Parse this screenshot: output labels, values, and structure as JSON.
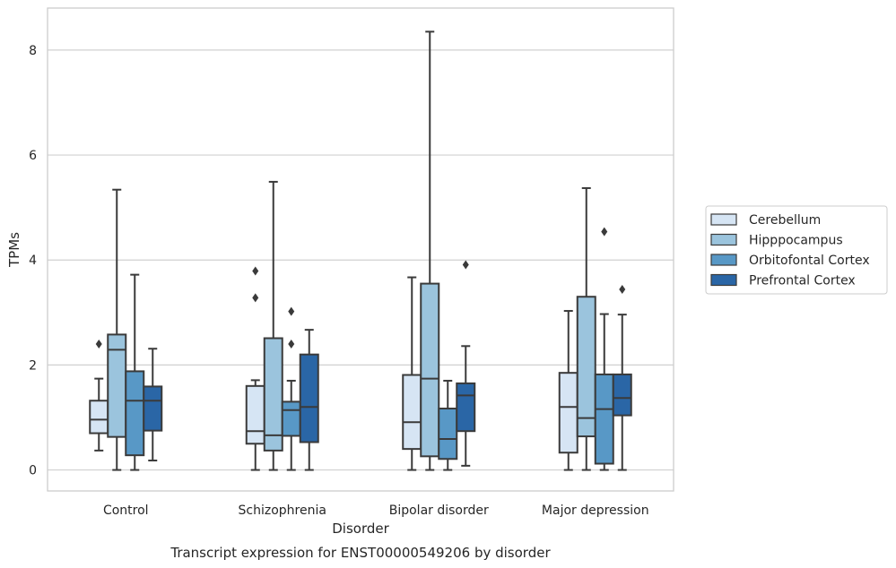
{
  "chart_data": {
    "type": "box",
    "xlabel": "Disorder",
    "ylabel": "TPMs",
    "caption": "Transcript expression for ENST00000549206 by disorder",
    "ylim": [
      -0.4,
      8.8
    ],
    "yticks": [
      0,
      2,
      4,
      6,
      8
    ],
    "grid": "horizontal",
    "legend_position": "right",
    "categories": [
      "Control",
      "Schizophrenia",
      "Bipolar disorder",
      "Major depression"
    ],
    "series": [
      {
        "name": "Cerebellum",
        "color": "#d6e5f4",
        "boxes": [
          {
            "whislo": 0.37,
            "q1": 0.7,
            "med": 0.96,
            "q3": 1.32,
            "whishi": 1.74,
            "fliers": [
              2.4
            ]
          },
          {
            "whislo": 0.0,
            "q1": 0.5,
            "med": 0.74,
            "q3": 1.6,
            "whishi": 1.71,
            "fliers": [
              3.28,
              3.79
            ]
          },
          {
            "whislo": 0.0,
            "q1": 0.4,
            "med": 0.91,
            "q3": 1.81,
            "whishi": 3.67,
            "fliers": []
          },
          {
            "whislo": 0.0,
            "q1": 0.33,
            "med": 1.2,
            "q3": 1.85,
            "whishi": 3.03,
            "fliers": []
          }
        ]
      },
      {
        "name": "Hipppocampus",
        "color": "#9bc4dd",
        "boxes": [
          {
            "whislo": 0.0,
            "q1": 0.63,
            "med": 2.29,
            "q3": 2.58,
            "whishi": 5.34,
            "fliers": []
          },
          {
            "whislo": 0.0,
            "q1": 0.37,
            "med": 0.66,
            "q3": 2.51,
            "whishi": 5.49,
            "fliers": []
          },
          {
            "whislo": 0.0,
            "q1": 0.26,
            "med": 1.74,
            "q3": 3.55,
            "whishi": 8.35,
            "fliers": []
          },
          {
            "whislo": 0.0,
            "q1": 0.64,
            "med": 0.99,
            "q3": 3.3,
            "whishi": 5.37,
            "fliers": []
          }
        ]
      },
      {
        "name": "Orbitofontal Cortex",
        "color": "#5898c6",
        "boxes": [
          {
            "whislo": 0.0,
            "q1": 0.28,
            "med": 1.32,
            "q3": 1.88,
            "whishi": 3.72,
            "fliers": []
          },
          {
            "whislo": 0.0,
            "q1": 0.65,
            "med": 1.14,
            "q3": 1.3,
            "whishi": 1.7,
            "fliers": [
              2.4,
              3.02
            ]
          },
          {
            "whislo": 0.0,
            "q1": 0.21,
            "med": 0.59,
            "q3": 1.17,
            "whishi": 1.7,
            "fliers": []
          },
          {
            "whislo": 0.0,
            "q1": 0.12,
            "med": 1.16,
            "q3": 1.82,
            "whishi": 2.97,
            "fliers": [
              4.54
            ]
          }
        ]
      },
      {
        "name": "Prefrontal Cortex",
        "color": "#2a66a6",
        "boxes": [
          {
            "whislo": 0.18,
            "q1": 0.75,
            "med": 1.32,
            "q3": 1.59,
            "whishi": 2.31,
            "fliers": []
          },
          {
            "whislo": 0.0,
            "q1": 0.53,
            "med": 1.2,
            "q3": 2.2,
            "whishi": 2.67,
            "fliers": []
          },
          {
            "whislo": 0.08,
            "q1": 0.74,
            "med": 1.42,
            "q3": 1.65,
            "whishi": 2.36,
            "fliers": [
              3.91
            ]
          },
          {
            "whislo": 0.0,
            "q1": 1.04,
            "med": 1.37,
            "q3": 1.82,
            "whishi": 2.96,
            "fliers": [
              3.44
            ]
          }
        ]
      }
    ]
  }
}
